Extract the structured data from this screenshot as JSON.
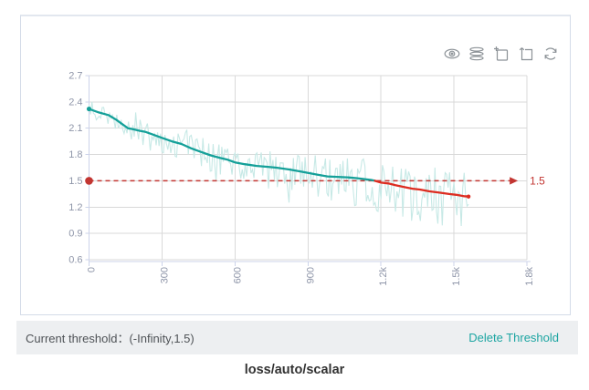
{
  "card": {
    "toolbar": {
      "icon_color": "#8b9196",
      "icons": [
        {
          "name": "visibility-eye"
        },
        {
          "name": "runs-layers"
        },
        {
          "name": "zoom-box-select"
        },
        {
          "name": "restore-zoom"
        },
        {
          "name": "refresh"
        }
      ]
    }
  },
  "chart_data": {
    "type": "line",
    "title": "loss/auto/scalar",
    "xlabel": "",
    "ylabel": "",
    "xlim": [
      0,
      1800
    ],
    "ylim": [
      0.6,
      2.7
    ],
    "grid": true,
    "grid_color": "#d9d9d9",
    "axis_color": "#ccd3ea",
    "tick_label_color": "#8f96a9",
    "x_axis": {
      "ticks": [
        0,
        300,
        600,
        900,
        1200,
        1500,
        1800
      ],
      "tick_labels": [
        "0",
        "300",
        "600",
        "900",
        "1.2k",
        "1.5k",
        "1.8k"
      ]
    },
    "y_axis": {
      "ticks": [
        0.6,
        0.9,
        1.2,
        1.5,
        1.8,
        2.1,
        2.4,
        2.7
      ],
      "tick_labels": [
        "0.6",
        "0.9",
        "1.2",
        "1.5",
        "1.8",
        "2.1",
        "2.4",
        "2.7"
      ]
    },
    "threshold": {
      "value": 1.5,
      "label": "1.5",
      "color": "#c23531",
      "line_start_x": 0,
      "arrow_tip_x": 1763
    },
    "series": [
      {
        "name": "raw",
        "type": "noisy_raw",
        "color": "#c7e9e6",
        "max_x": 1560,
        "noise": {
          "seed": 987654321,
          "step": 6,
          "amp_start": 0.1,
          "amp_end": 0.38,
          "bias": -0.05,
          "spike_chance": 0.07,
          "spike_scale": 1.7,
          "clamp": [
            0.86,
            2.48
          ]
        }
      },
      {
        "name": "smoothed",
        "type": "line",
        "color_above_threshold": "#14a099",
        "color_below_threshold": "#dd2c20",
        "points": [
          [
            0,
            2.32
          ],
          [
            40,
            2.28
          ],
          [
            80,
            2.25
          ],
          [
            110,
            2.2
          ],
          [
            130,
            2.16
          ],
          [
            160,
            2.1
          ],
          [
            180,
            2.09
          ],
          [
            210,
            2.07
          ],
          [
            230,
            2.06
          ],
          [
            260,
            2.03
          ],
          [
            300,
            1.99
          ],
          [
            340,
            1.95
          ],
          [
            380,
            1.92
          ],
          [
            420,
            1.87
          ],
          [
            460,
            1.83
          ],
          [
            500,
            1.79
          ],
          [
            540,
            1.76
          ],
          [
            570,
            1.74
          ],
          [
            600,
            1.71
          ],
          [
            640,
            1.69
          ],
          [
            690,
            1.67
          ],
          [
            730,
            1.66
          ],
          [
            770,
            1.65
          ],
          [
            820,
            1.63
          ],
          [
            860,
            1.61
          ],
          [
            900,
            1.59
          ],
          [
            940,
            1.57
          ],
          [
            980,
            1.55
          ],
          [
            1020,
            1.545
          ],
          [
            1060,
            1.54
          ],
          [
            1100,
            1.53
          ],
          [
            1130,
            1.52
          ],
          [
            1160,
            1.51
          ],
          [
            1175,
            1.5
          ],
          [
            1200,
            1.48
          ],
          [
            1230,
            1.47
          ],
          [
            1260,
            1.45
          ],
          [
            1295,
            1.43
          ],
          [
            1330,
            1.41
          ],
          [
            1360,
            1.4
          ],
          [
            1400,
            1.38
          ],
          [
            1440,
            1.365
          ],
          [
            1480,
            1.35
          ],
          [
            1510,
            1.34
          ],
          [
            1540,
            1.325
          ],
          [
            1560,
            1.32
          ]
        ]
      }
    ]
  },
  "threshold_bar": {
    "background": "#edeff1",
    "label": "Current threshold：",
    "value": "(-Infinity,1.5)",
    "delete_label": "Delete Threshold",
    "delete_color": "#1ca5a2"
  },
  "footer": {
    "title": "loss/auto/scalar"
  }
}
